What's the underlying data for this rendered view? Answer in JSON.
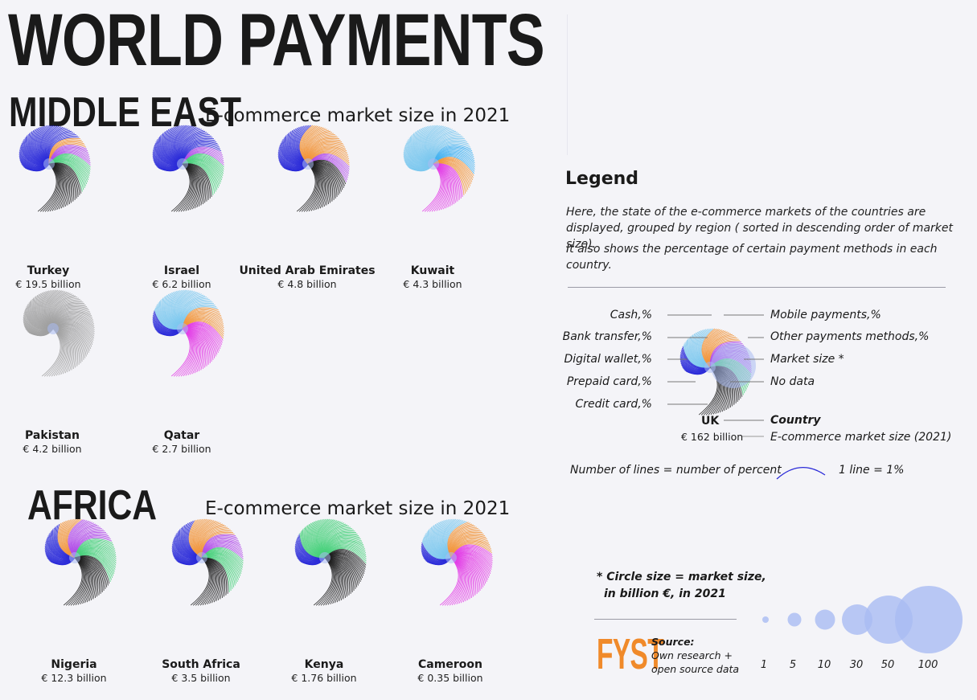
{
  "title": "WORLD PAYMENTS",
  "sections": {
    "middle_east": {
      "heading": "MIDDLE EAST",
      "subtitle": "E-commerce market size in 2021"
    },
    "africa": {
      "heading": "AFRICA",
      "subtitle": "E-commerce market size in 2021"
    }
  },
  "colors": {
    "cash": "#9a9a9a",
    "bank_transfer": "#2a2ad8",
    "digital_wallet": "#f2953a",
    "prepaid_card": "#7bc8ee",
    "credit_card": "#2a2ad8",
    "mobile_payments": "#46d07a",
    "other_payments": "#1a1a1a",
    "market_size_bubble": "#a9bcf2",
    "no_data": "#a0a0a0"
  },
  "chart_data": [
    {
      "type": "other",
      "region": "Middle East",
      "title": "E-commerce market size in 2021",
      "unit": "€ billion",
      "countries": [
        {
          "name": "Turkey",
          "market_size_label": "€ 19.5 billion",
          "market_size": 19.5,
          "style": "bdwom"
        },
        {
          "name": "Israel",
          "market_size_label": "€ 6.2 billion",
          "market_size": 6.2,
          "style": "bwmo"
        },
        {
          "name": "United Arab Emirates",
          "market_size_label": "€ 4.8 billion",
          "market_size": 4.8,
          "style": "bdwo"
        },
        {
          "name": "Kuwait",
          "market_size_label": "€ 4.3 billion",
          "market_size": 4.3,
          "style": "kuw"
        },
        {
          "name": "Pakistan",
          "market_size_label": "€ 4.2 billion",
          "market_size": 4.2,
          "style": "nodata"
        },
        {
          "name": "Qatar",
          "market_size_label": "€ 2.7 billion",
          "market_size": 2.7,
          "style": "qat"
        }
      ]
    },
    {
      "type": "other",
      "region": "Africa",
      "title": "E-commerce market size in 2021",
      "unit": "€ billion",
      "countries": [
        {
          "name": "Nigeria",
          "market_size_label": "€ 12.3 billion",
          "market_size": 12.3,
          "style": "nig"
        },
        {
          "name": "South Africa",
          "market_size_label": "€ 3.5 billion",
          "market_size": 3.5,
          "style": "saf"
        },
        {
          "name": "Kenya",
          "market_size_label": "€ 1.76 billion",
          "market_size": 1.76,
          "style": "ken"
        },
        {
          "name": "Cameroon",
          "market_size_label": "€ 0.35 billion",
          "market_size": 0.35,
          "style": "cam"
        }
      ]
    }
  ],
  "legend": {
    "title": "Legend",
    "paragraph1": "Here, the state  of the e-commerce markets of the countries are displayed, grouped by region ( sorted in descending order of market size).",
    "paragraph2": "It also shows the percentage of certain payment methods in each country.",
    "left_labels": [
      "Cash,%",
      "Bank transfer,%",
      "Digital wallet,%",
      "Prepaid card,%",
      "Credit card,%"
    ],
    "right_labels": [
      "Mobile payments,%",
      "Other payments methods,%",
      "Market size *",
      "No data"
    ],
    "example_country": "UK",
    "example_value": "€ 162 billion",
    "country_label": "Country",
    "market_size_label": "E-commerce market size (2021)",
    "lines_note": "Number of lines = number of percent",
    "line_unit": "1 line = 1%"
  },
  "size_note": {
    "line1": "* Circle size = market size,",
    "line2": "in billion €, in 2021",
    "scale_values": [
      "1",
      "5",
      "10",
      "30",
      "50",
      "100"
    ]
  },
  "source": {
    "logo": "FYST",
    "label": "Source:",
    "text": "Own research + open source data"
  }
}
